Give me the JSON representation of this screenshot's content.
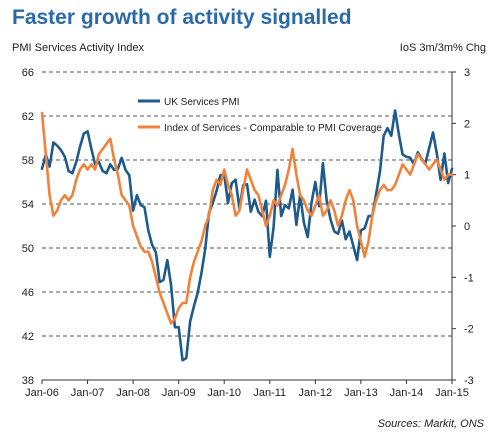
{
  "chart_data": {
    "type": "line",
    "title": "Faster growth of activity signalled",
    "ylabel_left": "PMI Services Activity Index",
    "ylabel_right": "IoS 3m/3m% Chg",
    "source": "Sources: Markit, ONS",
    "x_ticks": [
      "Jan-06",
      "Jan-07",
      "Jan-08",
      "Jan-09",
      "Jan-10",
      "Jan-11",
      "Jan-12",
      "Jan-13",
      "Jan-14",
      "Jan-15"
    ],
    "y_left": {
      "lim": [
        38,
        66
      ],
      "ticks": [
        "38",
        "42",
        "46",
        "50",
        "54",
        "58",
        "62",
        "66"
      ]
    },
    "y_right": {
      "lim": [
        -3,
        3
      ],
      "ticks": [
        "-3",
        "-2",
        "-1",
        "0",
        "1",
        "2",
        "3"
      ]
    },
    "grid": true,
    "legend_position": "top-center",
    "series": [
      {
        "name": "UK Services PMI",
        "color": "#1f5a8c",
        "axis": "left",
        "values": [
          57.2,
          58.5,
          57.4,
          59.6,
          59.3,
          58.9,
          58.3,
          57.0,
          56.8,
          57.8,
          59.2,
          60.4,
          60.6,
          59.0,
          57.6,
          57.8,
          57.0,
          56.8,
          57.6,
          57.1,
          57.2,
          58.2,
          57.1,
          56.6,
          53.4,
          54.8,
          53.9,
          53.7,
          51.6,
          50.3,
          49.6,
          46.9,
          47.1,
          48.9,
          46.6,
          42.8,
          42.8,
          39.8,
          40.0,
          43.3,
          44.7,
          45.9,
          47.7,
          49.9,
          53.2,
          54.1,
          55.2,
          56.6,
          56.7,
          54.1,
          55.9,
          56.2,
          53.6,
          55.7,
          55.8,
          53.3,
          54.4,
          53.3,
          52.9,
          54.3,
          49.2,
          51.9,
          57.1,
          52.9,
          53.9,
          53.6,
          55.3,
          52.1,
          54.8,
          52.3,
          51.0,
          54.1,
          56.0,
          53.8,
          57.7,
          54.3,
          52.6,
          51.5,
          51.3,
          52.5,
          50.8,
          51.5,
          50.2,
          48.9,
          51.6,
          51.8,
          52.9,
          52.9,
          54.9,
          56.9,
          60.2,
          60.9,
          60.2,
          62.5,
          60.3,
          58.5,
          58.3,
          58.2,
          57.6,
          58.7,
          58.1,
          57.7,
          59.1,
          60.5,
          58.6,
          56.2,
          58.6,
          55.9,
          57.2
        ]
      },
      {
        "name": "Index of Services - Comparable to PMI Coverage",
        "color": "#f0823a",
        "axis": "right",
        "values": [
          2.2,
          1.4,
          0.6,
          0.2,
          0.3,
          0.5,
          0.6,
          0.5,
          0.6,
          0.9,
          1.1,
          1.2,
          1.1,
          1.2,
          1.1,
          1.4,
          1.5,
          1.6,
          1.7,
          1.3,
          1.0,
          0.6,
          0.5,
          0.4,
          0.0,
          -0.2,
          -0.4,
          -0.5,
          -0.5,
          -0.7,
          -1.0,
          -1.3,
          -1.5,
          -1.7,
          -1.9,
          -1.8,
          -1.6,
          -1.5,
          -1.5,
          -1.0,
          -0.7,
          -0.5,
          -0.3,
          0.0,
          0.2,
          0.7,
          0.9,
          0.8,
          1.1,
          0.8,
          0.6,
          0.2,
          0.3,
          0.7,
          1.1,
          0.9,
          0.7,
          0.6,
          0.3,
          0.0,
          0.2,
          0.5,
          0.4,
          0.6,
          0.8,
          1.1,
          1.5,
          1.0,
          0.6,
          0.5,
          0.3,
          0.2,
          0.4,
          0.6,
          0.2,
          0.3,
          0.5,
          0.3,
          0.0,
          0.2,
          0.5,
          0.7,
          0.5,
          0.0,
          -0.3,
          -0.6,
          -0.3,
          0.2,
          0.5,
          0.7,
          0.8,
          0.7,
          0.7,
          0.8,
          1.0,
          1.2,
          1.1,
          1.0,
          1.2,
          1.4,
          1.3,
          1.2,
          1.1,
          1.2,
          1.3,
          1.1,
          0.9,
          1.0,
          1.0
        ]
      }
    ]
  }
}
